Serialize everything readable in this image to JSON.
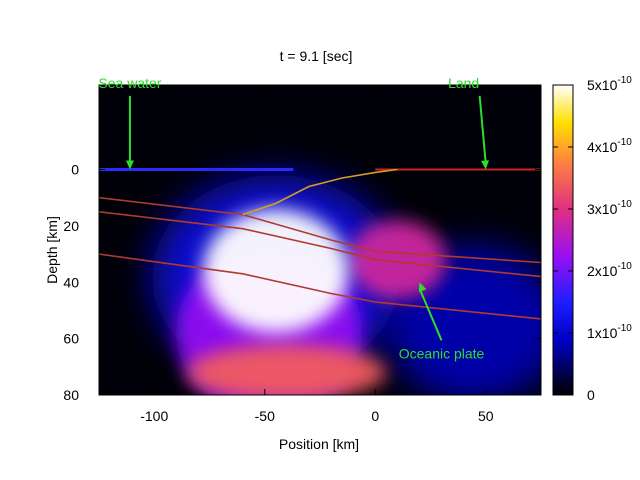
{
  "chart_data": {
    "type": "heatmap",
    "title": "t =  9.1 [sec]",
    "xlabel": "Position [km]",
    "ylabel": "Depth [km]",
    "xlim": [
      -125,
      75
    ],
    "ylim": [
      80,
      -30
    ],
    "y_inverted": true,
    "x_ticks": [
      "-100",
      "-50",
      "0",
      "50"
    ],
    "x_tick_values": [
      -100,
      -50,
      0,
      50
    ],
    "y_ticks": [
      "0",
      "20",
      "40",
      "60",
      "80"
    ],
    "y_tick_values": [
      0,
      20,
      40,
      60,
      80
    ],
    "colorbar": {
      "ticks": [
        {
          "value": 0,
          "mantissa": "0",
          "exponent": ""
        },
        {
          "value": 1,
          "mantissa": "1x10",
          "exponent": "-10"
        },
        {
          "value": 2,
          "mantissa": "2x10",
          "exponent": "-10"
        },
        {
          "value": 3,
          "mantissa": "3x10",
          "exponent": "-10"
        },
        {
          "value": 4,
          "mantissa": "4x10",
          "exponent": "-10"
        },
        {
          "value": 5,
          "mantissa": "5x10",
          "exponent": "-10"
        }
      ],
      "range": [
        0,
        5
      ],
      "colormap": "black-blue-purple-red-yellow-white"
    },
    "wavefield_blobs": [
      {
        "x": -45,
        "y": 36,
        "rx": 33,
        "ry": 22,
        "value": 5
      },
      {
        "x": -40,
        "y": 72,
        "rx": 45,
        "ry": 10,
        "value": 3.4
      },
      {
        "x": 10,
        "y": 32,
        "rx": 22,
        "ry": 14,
        "value": 2.8
      },
      {
        "x": -48,
        "y": 58,
        "rx": 42,
        "ry": 30,
        "value": 2.2
      },
      {
        "x": -45,
        "y": 38,
        "rx": 56,
        "ry": 36,
        "value": 1.1
      },
      {
        "x": 45,
        "y": 55,
        "rx": 40,
        "ry": 28,
        "value": 0.8
      }
    ],
    "sea_surface": {
      "x": [
        -125,
        -37
      ],
      "depth": 0,
      "color": "#2a2aff"
    },
    "land_surface": {
      "x": [
        0,
        75
      ],
      "depth": 0,
      "color": "#cc2222"
    },
    "plate_boundaries": [
      {
        "name": "",
        "x": [
          -125,
          -60,
          -20,
          0,
          75
        ],
        "depth": [
          10,
          16,
          25,
          29,
          33
        ],
        "color": "#b03a2e"
      },
      {
        "name": "",
        "x": [
          -125,
          -60,
          -20,
          0,
          75
        ],
        "depth": [
          15,
          21,
          28,
          32,
          38
        ],
        "color": "#b03a2e"
      },
      {
        "name": "",
        "x": [
          -125,
          -60,
          -20,
          0,
          75
        ],
        "depth": [
          30,
          37,
          44,
          47,
          53
        ],
        "color": "#b03a2e"
      },
      {
        "name": "",
        "x": [
          -60,
          -45,
          -30,
          -15,
          0,
          10
        ],
        "depth": [
          16,
          12,
          6,
          3,
          1,
          0
        ],
        "color": "#d4a020"
      }
    ],
    "annotations": [
      {
        "text": "Sea water",
        "anchor_x": -111,
        "anchor_depth": 0,
        "text_x": -111,
        "text_depth": -29
      },
      {
        "text": "Land",
        "anchor_x": 50,
        "anchor_depth": 0,
        "text_x": 40,
        "text_depth": -29
      },
      {
        "text": "Oceanic plate",
        "anchor_x": 20,
        "anchor_depth": 40,
        "text_x": 30,
        "text_depth": 67
      }
    ]
  }
}
